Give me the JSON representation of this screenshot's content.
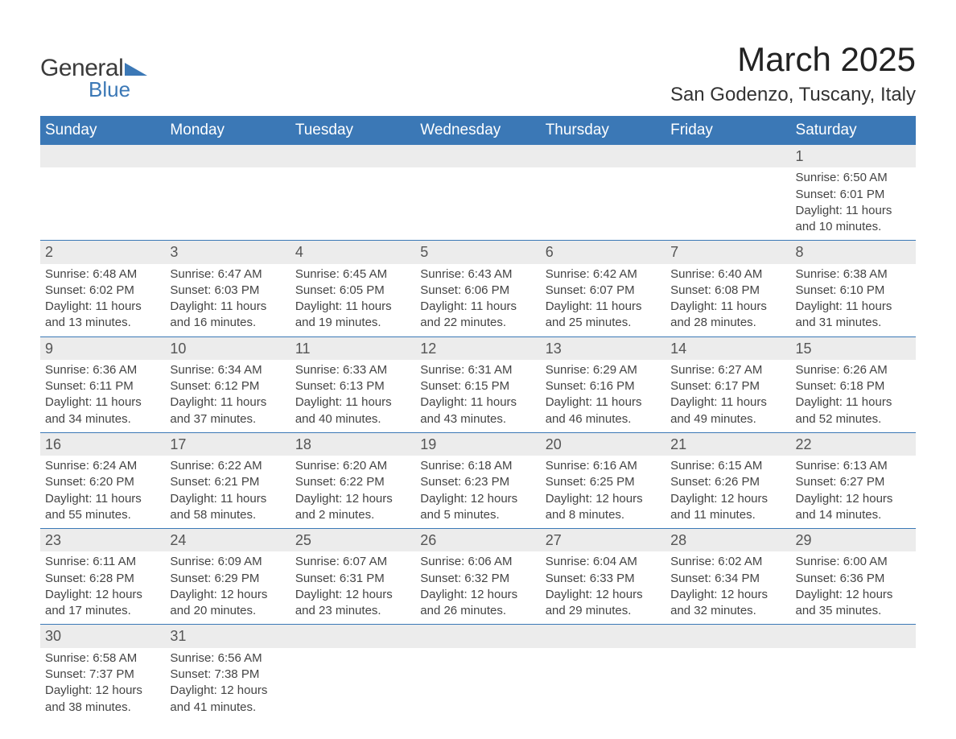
{
  "logo": {
    "text1": "General",
    "text2": "Blue",
    "shape_color": "#3b78b6",
    "text1_color": "#3b3b3b"
  },
  "header": {
    "month_title": "March 2025",
    "location": "San Godenzo, Tuscany, Italy"
  },
  "theme": {
    "header_bg": "#3b78b6",
    "header_text": "#ffffff",
    "daynum_bg": "#ececec",
    "row_border": "#3b78b6",
    "body_text": "#444444",
    "page_bg": "#ffffff",
    "title_fontsize": 42,
    "location_fontsize": 24,
    "dayheader_fontsize": 19,
    "daynum_fontsize": 18,
    "detail_fontsize": 15
  },
  "day_headers": [
    "Sunday",
    "Monday",
    "Tuesday",
    "Wednesday",
    "Thursday",
    "Friday",
    "Saturday"
  ],
  "labels": {
    "sunrise": "Sunrise: ",
    "sunset": "Sunset: ",
    "daylight": "Daylight: "
  },
  "weeks": [
    [
      null,
      null,
      null,
      null,
      null,
      null,
      {
        "n": "1",
        "sr": "6:50 AM",
        "ss": "6:01 PM",
        "dl1": "11 hours",
        "dl2": "and 10 minutes."
      }
    ],
    [
      {
        "n": "2",
        "sr": "6:48 AM",
        "ss": "6:02 PM",
        "dl1": "11 hours",
        "dl2": "and 13 minutes."
      },
      {
        "n": "3",
        "sr": "6:47 AM",
        "ss": "6:03 PM",
        "dl1": "11 hours",
        "dl2": "and 16 minutes."
      },
      {
        "n": "4",
        "sr": "6:45 AM",
        "ss": "6:05 PM",
        "dl1": "11 hours",
        "dl2": "and 19 minutes."
      },
      {
        "n": "5",
        "sr": "6:43 AM",
        "ss": "6:06 PM",
        "dl1": "11 hours",
        "dl2": "and 22 minutes."
      },
      {
        "n": "6",
        "sr": "6:42 AM",
        "ss": "6:07 PM",
        "dl1": "11 hours",
        "dl2": "and 25 minutes."
      },
      {
        "n": "7",
        "sr": "6:40 AM",
        "ss": "6:08 PM",
        "dl1": "11 hours",
        "dl2": "and 28 minutes."
      },
      {
        "n": "8",
        "sr": "6:38 AM",
        "ss": "6:10 PM",
        "dl1": "11 hours",
        "dl2": "and 31 minutes."
      }
    ],
    [
      {
        "n": "9",
        "sr": "6:36 AM",
        "ss": "6:11 PM",
        "dl1": "11 hours",
        "dl2": "and 34 minutes."
      },
      {
        "n": "10",
        "sr": "6:34 AM",
        "ss": "6:12 PM",
        "dl1": "11 hours",
        "dl2": "and 37 minutes."
      },
      {
        "n": "11",
        "sr": "6:33 AM",
        "ss": "6:13 PM",
        "dl1": "11 hours",
        "dl2": "and 40 minutes."
      },
      {
        "n": "12",
        "sr": "6:31 AM",
        "ss": "6:15 PM",
        "dl1": "11 hours",
        "dl2": "and 43 minutes."
      },
      {
        "n": "13",
        "sr": "6:29 AM",
        "ss": "6:16 PM",
        "dl1": "11 hours",
        "dl2": "and 46 minutes."
      },
      {
        "n": "14",
        "sr": "6:27 AM",
        "ss": "6:17 PM",
        "dl1": "11 hours",
        "dl2": "and 49 minutes."
      },
      {
        "n": "15",
        "sr": "6:26 AM",
        "ss": "6:18 PM",
        "dl1": "11 hours",
        "dl2": "and 52 minutes."
      }
    ],
    [
      {
        "n": "16",
        "sr": "6:24 AM",
        "ss": "6:20 PM",
        "dl1": "11 hours",
        "dl2": "and 55 minutes."
      },
      {
        "n": "17",
        "sr": "6:22 AM",
        "ss": "6:21 PM",
        "dl1": "11 hours",
        "dl2": "and 58 minutes."
      },
      {
        "n": "18",
        "sr": "6:20 AM",
        "ss": "6:22 PM",
        "dl1": "12 hours",
        "dl2": "and 2 minutes."
      },
      {
        "n": "19",
        "sr": "6:18 AM",
        "ss": "6:23 PM",
        "dl1": "12 hours",
        "dl2": "and 5 minutes."
      },
      {
        "n": "20",
        "sr": "6:16 AM",
        "ss": "6:25 PM",
        "dl1": "12 hours",
        "dl2": "and 8 minutes."
      },
      {
        "n": "21",
        "sr": "6:15 AM",
        "ss": "6:26 PM",
        "dl1": "12 hours",
        "dl2": "and 11 minutes."
      },
      {
        "n": "22",
        "sr": "6:13 AM",
        "ss": "6:27 PM",
        "dl1": "12 hours",
        "dl2": "and 14 minutes."
      }
    ],
    [
      {
        "n": "23",
        "sr": "6:11 AM",
        "ss": "6:28 PM",
        "dl1": "12 hours",
        "dl2": "and 17 minutes."
      },
      {
        "n": "24",
        "sr": "6:09 AM",
        "ss": "6:29 PM",
        "dl1": "12 hours",
        "dl2": "and 20 minutes."
      },
      {
        "n": "25",
        "sr": "6:07 AM",
        "ss": "6:31 PM",
        "dl1": "12 hours",
        "dl2": "and 23 minutes."
      },
      {
        "n": "26",
        "sr": "6:06 AM",
        "ss": "6:32 PM",
        "dl1": "12 hours",
        "dl2": "and 26 minutes."
      },
      {
        "n": "27",
        "sr": "6:04 AM",
        "ss": "6:33 PM",
        "dl1": "12 hours",
        "dl2": "and 29 minutes."
      },
      {
        "n": "28",
        "sr": "6:02 AM",
        "ss": "6:34 PM",
        "dl1": "12 hours",
        "dl2": "and 32 minutes."
      },
      {
        "n": "29",
        "sr": "6:00 AM",
        "ss": "6:36 PM",
        "dl1": "12 hours",
        "dl2": "and 35 minutes."
      }
    ],
    [
      {
        "n": "30",
        "sr": "6:58 AM",
        "ss": "7:37 PM",
        "dl1": "12 hours",
        "dl2": "and 38 minutes."
      },
      {
        "n": "31",
        "sr": "6:56 AM",
        "ss": "7:38 PM",
        "dl1": "12 hours",
        "dl2": "and 41 minutes."
      },
      null,
      null,
      null,
      null,
      null
    ]
  ]
}
